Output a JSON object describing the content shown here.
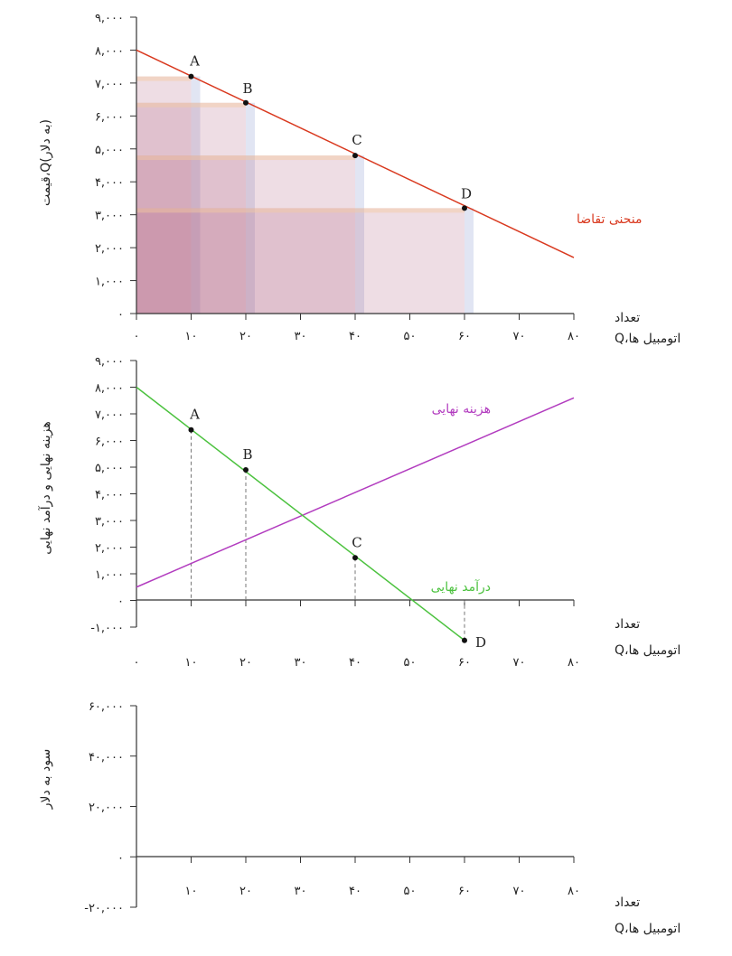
{
  "chart_data": [
    {
      "type": "line",
      "ylabel": "قیمت،Q(به دلار)",
      "xlabel_line1": "تعداد",
      "xlabel_line2": "Q،اتومبیل ها",
      "x_ticks": [
        0,
        10,
        20,
        30,
        40,
        50,
        60,
        70,
        80
      ],
      "x_tick_labels": [
        "۰",
        "۱۰",
        "۲۰",
        "۳۰",
        "۴۰",
        "۵۰",
        "۶۰",
        "۷۰",
        "۸۰"
      ],
      "y_ticks": [
        0,
        1000,
        2000,
        3000,
        4000,
        5000,
        6000,
        7000,
        8000,
        9000
      ],
      "y_tick_labels": [
        "۰",
        "۱,۰۰۰",
        "۲,۰۰۰",
        "۳,۰۰۰",
        "۴,۰۰۰",
        "۵,۰۰۰",
        "۶,۰۰۰",
        "۷,۰۰۰",
        "۸,۰۰۰",
        "۹,۰۰۰"
      ],
      "xlim": [
        0,
        80
      ],
      "ylim": [
        0,
        9000
      ],
      "series": [
        {
          "name": "منحنی تقاضا",
          "color": "#d9391f",
          "x": [
            0,
            80
          ],
          "y": [
            8000,
            1700
          ]
        }
      ],
      "points": [
        {
          "label": "A",
          "x": 10,
          "y": 7200
        },
        {
          "label": "B",
          "x": 20,
          "y": 6400
        },
        {
          "label": "C",
          "x": 40,
          "y": 4800
        },
        {
          "label": "D",
          "x": 60,
          "y": 3200
        }
      ],
      "revenue_rects": [
        {
          "x": 10,
          "y": 7200
        },
        {
          "x": 20,
          "y": 6400
        },
        {
          "x": 40,
          "y": 4800
        },
        {
          "x": 60,
          "y": 3200
        }
      ],
      "rect_color": "#a8577a"
    },
    {
      "type": "line",
      "ylabel": "هزینه نهایی و درآمد نهایی",
      "xlabel_line1": "تعداد",
      "xlabel_line2": "Q،اتومبیل ها",
      "x_ticks": [
        0,
        10,
        20,
        30,
        40,
        50,
        60,
        70,
        80
      ],
      "x_tick_labels": [
        "۰",
        "۱۰",
        "۲۰",
        "۳۰",
        "۴۰",
        "۵۰",
        "۶۰",
        "۷۰",
        "۸۰"
      ],
      "y_ticks": [
        -1000,
        0,
        1000,
        2000,
        3000,
        4000,
        5000,
        6000,
        7000,
        8000,
        9000
      ],
      "y_tick_labels": [
        "-۱,۰۰۰",
        "۰",
        "۱,۰۰۰",
        "۲,۰۰۰",
        "۳,۰۰۰",
        "۴,۰۰۰",
        "۵,۰۰۰",
        "۶,۰۰۰",
        "۷,۰۰۰",
        "۸,۰۰۰",
        "۹,۰۰۰"
      ],
      "xlim": [
        0,
        80
      ],
      "ylim": [
        -1000,
        9000
      ],
      "series": [
        {
          "name": "هزینه نهایی",
          "color": "#b23cbf",
          "x": [
            0,
            80
          ],
          "y": [
            500,
            7600
          ]
        },
        {
          "name": "درآمد نهایی",
          "color": "#4cc23f",
          "x": [
            0,
            60
          ],
          "y": [
            8000,
            -1500
          ]
        }
      ],
      "points": [
        {
          "label": "A",
          "x": 10,
          "y": 6400
        },
        {
          "label": "B",
          "x": 20,
          "y": 4900
        },
        {
          "label": "C",
          "x": 40,
          "y": 1600
        },
        {
          "label": "D",
          "x": 60,
          "y": -1500
        }
      ]
    },
    {
      "type": "line",
      "ylabel": "سود به دلار",
      "xlabel_line1": "تعداد",
      "xlabel_line2": "Q،اتومبیل ها",
      "x_ticks": [
        10,
        20,
        30,
        40,
        50,
        60,
        70,
        80
      ],
      "x_tick_labels": [
        "۱۰",
        "۲۰",
        "۳۰",
        "۴۰",
        "۵۰",
        "۶۰",
        "۷۰",
        "۸۰"
      ],
      "y_ticks": [
        -20000,
        0,
        20000,
        40000,
        60000
      ],
      "y_tick_labels": [
        "-۲۰,۰۰۰",
        "۰",
        "۲۰,۰۰۰",
        "۴۰,۰۰۰",
        "۶۰,۰۰۰"
      ],
      "xlim": [
        0,
        80
      ],
      "ylim": [
        -20000,
        60000
      ],
      "series": []
    }
  ]
}
